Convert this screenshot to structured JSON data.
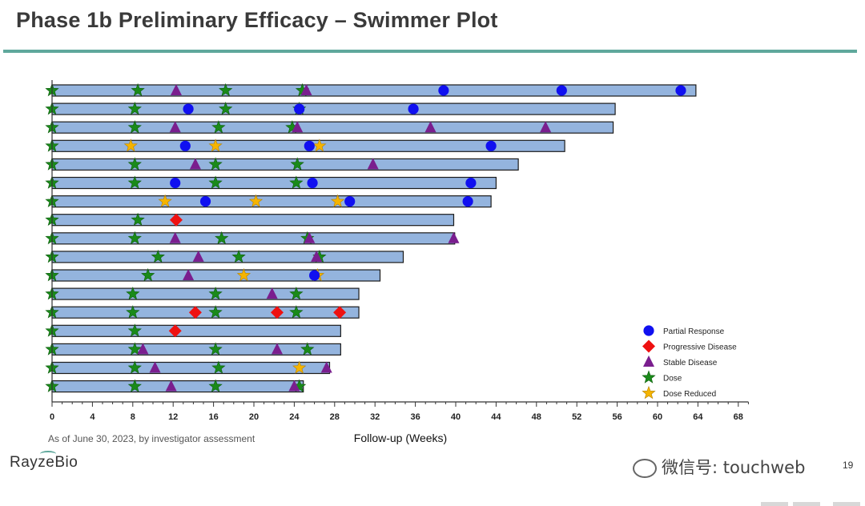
{
  "page": {
    "title": "Phase 1b Preliminary Efficacy – Swimmer Plot",
    "footnote": "As of June 30, 2023, by investigator assessment",
    "logo": "RayzeBio",
    "watermark": "微信号: touchweb",
    "page_number": "19",
    "colors": {
      "accent": "#5fa89c",
      "bar": "#94b4de",
      "pr": "#1010f0",
      "pd": "#ee1111",
      "sd": "#7a1e8e",
      "dose": "#1a8a1a",
      "dose_reduced": "#f5b400"
    }
  },
  "chart_data": {
    "type": "swimmer",
    "xlabel": "Follow-up (Weeks)",
    "xlim": [
      0,
      69
    ],
    "xticks": [
      0,
      4,
      8,
      12,
      16,
      20,
      24,
      28,
      32,
      36,
      40,
      44,
      48,
      52,
      56,
      60,
      64,
      68
    ],
    "legend_position": "bottom-right",
    "legend": [
      {
        "key": "pr",
        "label": "Partial Response"
      },
      {
        "key": "pd",
        "label": "Progressive Disease"
      },
      {
        "key": "sd",
        "label": "Stable Disease"
      },
      {
        "key": "dose",
        "label": "Dose"
      },
      {
        "key": "dose_reduced",
        "label": "Dose Reduced"
      }
    ],
    "patients": [
      {
        "duration": 63.8,
        "dose": [
          0,
          8.5,
          17.2,
          24.8
        ],
        "dose_reduced": [],
        "pr": [
          38.8,
          50.5,
          62.3
        ],
        "sd": [
          12.3,
          25.2
        ],
        "pd": []
      },
      {
        "duration": 55.8,
        "dose": [
          0,
          8.2,
          17.2,
          24.5
        ],
        "dose_reduced": [],
        "pr": [
          13.5,
          24.5,
          35.8
        ],
        "sd": [],
        "pd": []
      },
      {
        "duration": 55.6,
        "dose": [
          0,
          8.2,
          16.5,
          23.8
        ],
        "dose_reduced": [],
        "pr": [],
        "sd": [
          12.2,
          24.3,
          37.5,
          48.9
        ],
        "pd": []
      },
      {
        "duration": 50.8,
        "dose": [
          0
        ],
        "dose_reduced": [
          7.8,
          16.2,
          26.5
        ],
        "pr": [
          13.2,
          25.5,
          43.5
        ],
        "sd": [],
        "pd": []
      },
      {
        "duration": 46.2,
        "dose": [
          0,
          8.2,
          16.2,
          24.3
        ],
        "dose_reduced": [],
        "pr": [],
        "sd": [
          14.2,
          31.8
        ],
        "pd": []
      },
      {
        "duration": 44.0,
        "dose": [
          0,
          8.2,
          16.2,
          24.2
        ],
        "dose_reduced": [],
        "pr": [
          12.2,
          25.8,
          41.5
        ],
        "sd": [],
        "pd": []
      },
      {
        "duration": 43.5,
        "dose": [
          0
        ],
        "dose_reduced": [
          11.2,
          20.2,
          28.3
        ],
        "pr": [
          15.2,
          29.5,
          41.2
        ],
        "sd": [],
        "pd": []
      },
      {
        "duration": 39.8,
        "dose": [
          0,
          8.5
        ],
        "dose_reduced": [],
        "pr": [],
        "sd": [],
        "pd": [
          12.3
        ]
      },
      {
        "duration": 39.9,
        "dose": [
          0,
          8.2,
          16.8,
          25.3
        ],
        "dose_reduced": [],
        "pr": [],
        "sd": [
          12.2,
          25.5,
          39.8
        ],
        "pd": []
      },
      {
        "duration": 34.8,
        "dose": [
          0,
          10.5,
          18.5,
          26.5
        ],
        "dose_reduced": [],
        "pr": [],
        "sd": [
          14.5,
          26.2
        ],
        "pd": []
      },
      {
        "duration": 32.5,
        "dose": [
          0,
          9.5
        ],
        "dose_reduced": [
          19.0,
          26.3
        ],
        "pr": [
          26.0
        ],
        "sd": [
          13.5
        ],
        "pd": []
      },
      {
        "duration": 30.4,
        "dose": [
          0,
          8.0,
          16.2,
          24.2
        ],
        "dose_reduced": [],
        "pr": [],
        "sd": [
          21.8
        ],
        "pd": []
      },
      {
        "duration": 30.4,
        "dose": [
          0,
          8.0,
          16.2,
          24.2
        ],
        "dose_reduced": [],
        "pr": [],
        "sd": [],
        "pd": [
          14.2,
          22.3,
          28.5
        ]
      },
      {
        "duration": 28.6,
        "dose": [
          0,
          8.2
        ],
        "dose_reduced": [],
        "pr": [],
        "sd": [],
        "pd": [
          12.2
        ]
      },
      {
        "duration": 28.6,
        "dose": [
          0,
          8.2,
          16.2,
          25.3
        ],
        "dose_reduced": [],
        "pr": [],
        "sd": [
          9.0,
          22.3
        ],
        "pd": []
      },
      {
        "duration": 27.5,
        "dose": [
          0,
          8.2,
          16.5
        ],
        "dose_reduced": [
          24.5
        ],
        "pr": [],
        "sd": [
          10.2,
          27.2
        ],
        "pd": []
      },
      {
        "duration": 24.9,
        "dose": [
          0,
          8.2,
          16.2,
          24.5
        ],
        "dose_reduced": [],
        "pr": [],
        "sd": [
          11.8,
          24.0
        ],
        "pd": []
      }
    ]
  }
}
